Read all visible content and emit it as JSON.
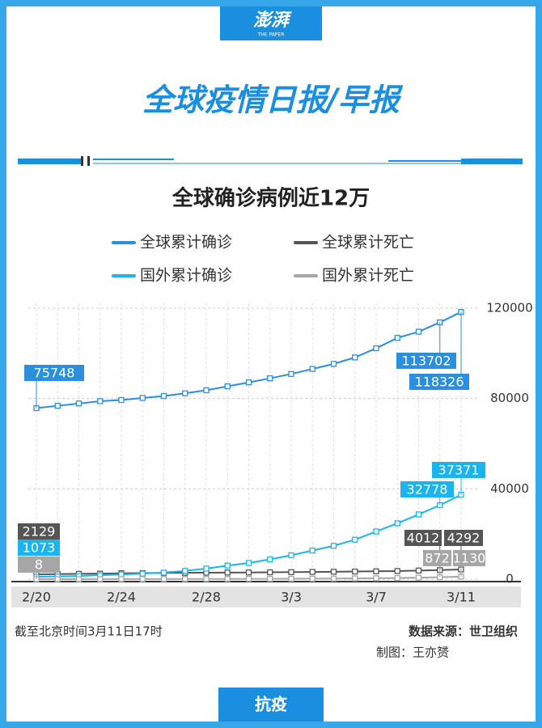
{
  "header": {
    "logo": "澎湃",
    "logo_sub": "THE PAPER",
    "title": "全球疫情日报/早报"
  },
  "chart_data": {
    "type": "line",
    "title": "全球确诊病例近12万",
    "categories": [
      "2/20",
      null,
      null,
      null,
      "2/24",
      null,
      null,
      null,
      "2/28",
      null,
      null,
      null,
      "3/3",
      null,
      null,
      null,
      "3/7",
      null,
      null,
      null,
      "3/11"
    ],
    "series": [
      {
        "name": "全球累计确诊",
        "color": "#2a8fde",
        "values": [
          75748,
          76769,
          77794,
          78811,
          79331,
          80239,
          81109,
          82294,
          83652,
          85403,
          87137,
          88948,
          90869,
          93090,
          95324,
          98192,
          102244,
          106843,
          109578,
          113702,
          118326
        ]
      },
      {
        "name": "全球累计死亡",
        "color": "#555555",
        "values": [
          2129,
          2247,
          2360,
          2462,
          2618,
          2699,
          2763,
          2804,
          2858,
          2924,
          2977,
          3043,
          3112,
          3198,
          3285,
          3381,
          3484,
          3595,
          3809,
          4012,
          4292
        ]
      },
      {
        "name": "国外累计确诊",
        "color": "#1cb4ef",
        "values": [
          1073,
          1200,
          1402,
          1769,
          2069,
          2459,
          2918,
          3664,
          4691,
          6009,
          7169,
          8774,
          10566,
          12668,
          14768,
          17481,
          21110,
          24727,
          28674,
          32778,
          37371
        ]
      },
      {
        "name": "国外累计死亡",
        "color": "#a6a6a6",
        "values": [
          8,
          11,
          11,
          23,
          34,
          43,
          57,
          69,
          86,
          104,
          128,
          131,
          161,
          214,
          267,
          335,
          413,
          484,
          686,
          872,
          1130
        ]
      }
    ],
    "ylim": [
      0,
      120000
    ],
    "yticks": [
      0,
      40000,
      80000,
      120000
    ],
    "grid": true
  },
  "footer": {
    "note": "截至北京时间3月11日17时",
    "source": "数据来源：世卫组织",
    "credit": "制图：王亦赟",
    "tab": "抗疫"
  }
}
